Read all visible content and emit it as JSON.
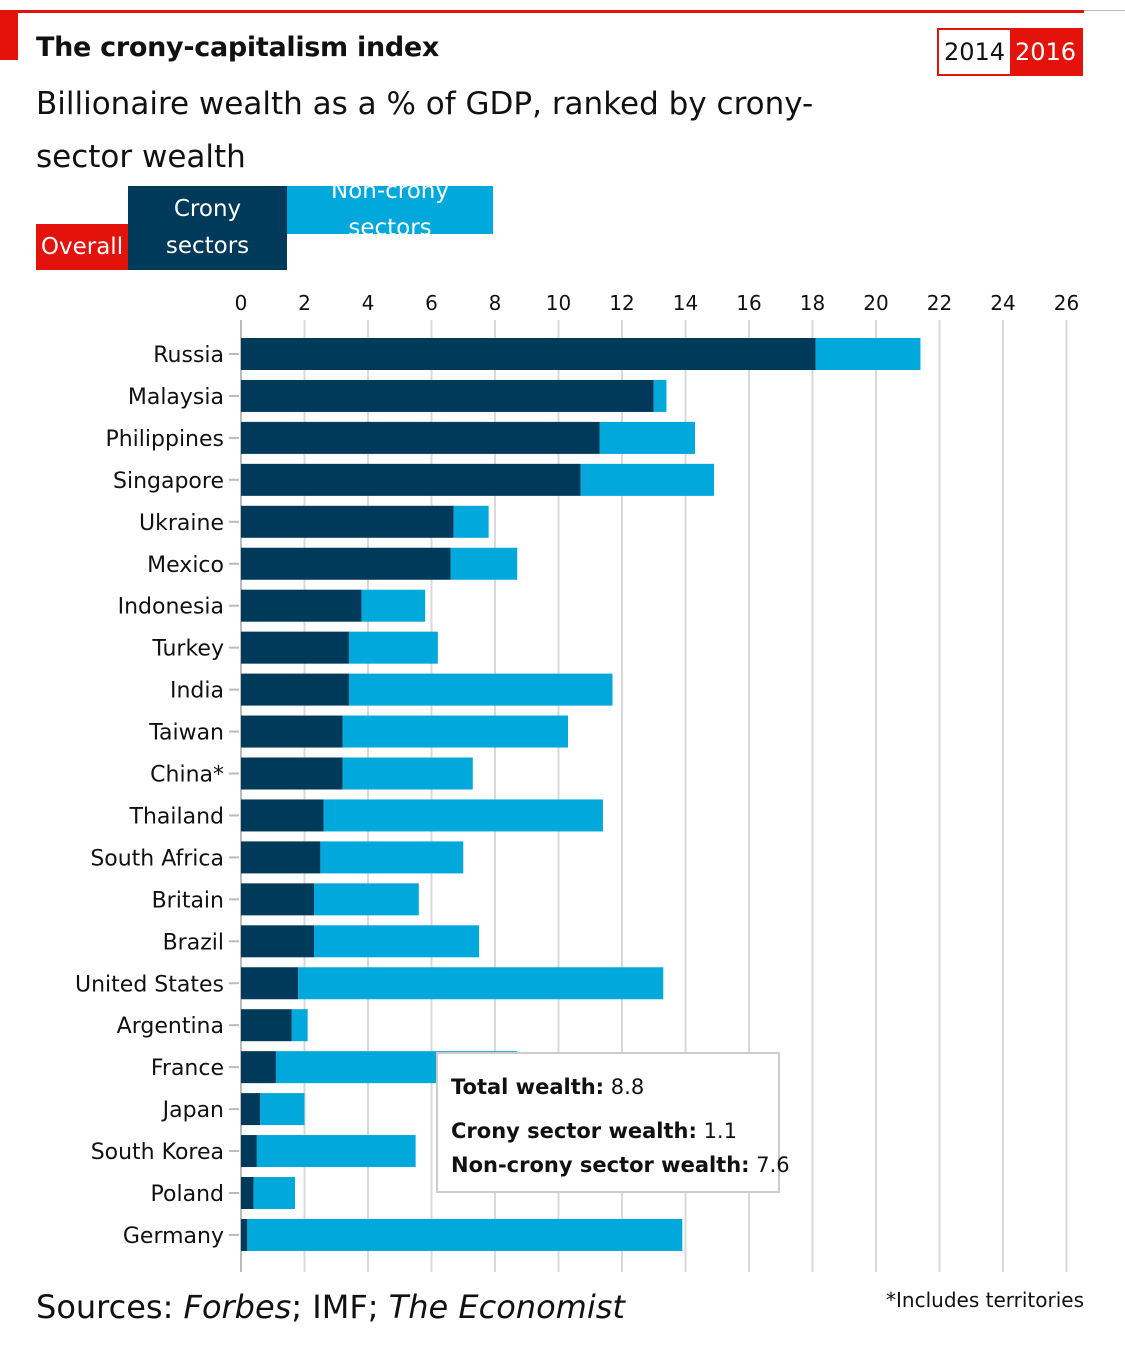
{
  "header": {
    "title": "The crony-capitalism index",
    "subtitle": "Billionaire wealth as a % of GDP, ranked by crony-sector wealth"
  },
  "years": {
    "options": [
      "2014",
      "2016"
    ],
    "selected": "2016"
  },
  "tabs": {
    "overall": "Overall",
    "crony": "Crony sectors",
    "noncrony": "Non-crony sectors"
  },
  "colors": {
    "accent": "#e3120b",
    "crony": "#003a5a",
    "noncrony": "#00a8dc",
    "grid": "#d9d9d9"
  },
  "chart_data": {
    "type": "bar",
    "orientation": "horizontal",
    "stacked": true,
    "x_ticks": [
      0,
      2,
      4,
      6,
      8,
      10,
      12,
      14,
      16,
      18,
      20,
      22,
      24,
      26
    ],
    "xlim": [
      0,
      26
    ],
    "grid": true,
    "categories": [
      "Russia",
      "Malaysia",
      "Philippines",
      "Singapore",
      "Ukraine",
      "Mexico",
      "Indonesia",
      "Turkey",
      "India",
      "Taiwan",
      "China*",
      "Thailand",
      "South Africa",
      "Britain",
      "Brazil",
      "United States",
      "Argentina",
      "France",
      "Japan",
      "South Korea",
      "Poland",
      "Germany"
    ],
    "series": [
      {
        "name": "Crony sectors",
        "color": "#003a5a",
        "values": [
          18.1,
          13.0,
          11.3,
          10.7,
          6.7,
          6.6,
          3.8,
          3.4,
          3.4,
          3.2,
          3.2,
          2.6,
          2.5,
          2.3,
          2.3,
          1.8,
          1.6,
          1.1,
          0.6,
          0.5,
          0.4,
          0.2
        ]
      },
      {
        "name": "Non-crony sectors",
        "color": "#00a8dc",
        "values": [
          3.3,
          0.4,
          3.0,
          4.2,
          1.1,
          2.1,
          2.0,
          2.8,
          8.3,
          7.1,
          4.1,
          8.8,
          4.5,
          3.3,
          5.2,
          11.5,
          0.5,
          7.6,
          1.4,
          5.0,
          1.3,
          13.7
        ]
      }
    ]
  },
  "tooltip": {
    "total_label": "Total wealth:",
    "total_value": "8.8",
    "crony_label": "Crony sector wealth:",
    "crony_value": "1.1",
    "noncrony_label": "Non-crony sector wealth:",
    "noncrony_value": "7.6"
  },
  "footer": {
    "sources_prefix": "Sources: ",
    "source_forbes": "Forbes",
    "source_sep1": "; IMF; ",
    "source_economist": "The Economist",
    "footnote": "*Includes territories"
  }
}
